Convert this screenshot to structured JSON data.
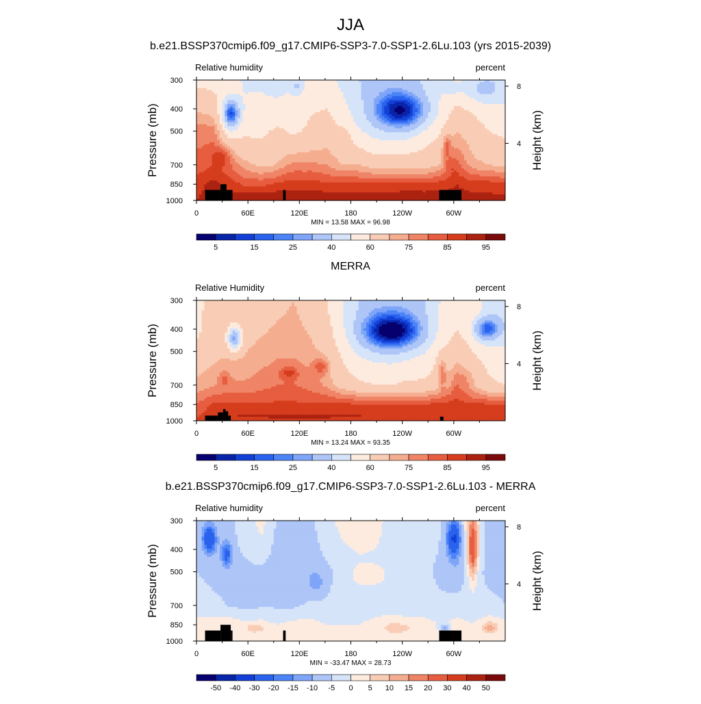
{
  "figure": {
    "title": "JJA"
  },
  "palettes": {
    "field": [
      "#07006f",
      "#0824a8",
      "#1240d6",
      "#2a62ee",
      "#4c84f7",
      "#7ea5f8",
      "#aec5f7",
      "#d6e4fa",
      "#fdebdf",
      "#f9cdb5",
      "#f5ad90",
      "#ef8466",
      "#e75d3f",
      "#d53d1d",
      "#ac2210",
      "#7b0a0a"
    ],
    "diff": [
      "#07006f",
      "#0824a8",
      "#1240d6",
      "#2a62ee",
      "#4c84f7",
      "#7ea5f8",
      "#aec5f7",
      "#d6e4fa",
      "#fdebdf",
      "#f9cdb5",
      "#f5ad90",
      "#ef8466",
      "#e75d3f",
      "#d53d1d",
      "#ac2210",
      "#7b0a0a"
    ],
    "terrain": "#000000"
  },
  "colorbars": {
    "field": {
      "labels": [
        "5",
        "15",
        "25",
        "40",
        "60",
        "75",
        "85",
        "95"
      ]
    },
    "diff": {
      "labels": [
        "-50",
        "-40",
        "-30",
        "-20",
        "-15",
        "-10",
        "-5",
        "0",
        "5",
        "10",
        "15",
        "20",
        "30",
        "40",
        "50"
      ]
    }
  },
  "axes": {
    "x_ticks": [
      "0",
      "60E",
      "120E",
      "180",
      "120W",
      "60W"
    ],
    "y_ticks": [
      "300",
      "400",
      "500",
      "700",
      "850",
      "1000"
    ],
    "y2_ticks": [
      "8",
      "4"
    ],
    "y_label": "Pressure (mb)",
    "y2_label": "Height (km)"
  },
  "chart_data": [
    {
      "type": "heatmap",
      "title": "b.e21.BSSP370cmip6.f09_g17.CMIP6-SSP3-7.0-SSP1-2.6Lu.103 (yrs 2015-2039)",
      "left_label": "Relative humidity",
      "right_label": "percent",
      "xlabel": "",
      "ylabel": "Pressure (mb)",
      "y2label": "Height (km)",
      "xlim": [
        0,
        360
      ],
      "ylim": [
        1000,
        300
      ],
      "y_log": true,
      "stats_text": "MIN =  13.58  MAX =  96.98",
      "min": 13.58,
      "max": 96.98,
      "levels": [
        5,
        10,
        15,
        20,
        25,
        30,
        40,
        50,
        60,
        70,
        75,
        80,
        85,
        90,
        95
      ],
      "palette": "field",
      "colorbar": "field",
      "base": [
        [
          60,
          56,
          56,
          48,
          48,
          45,
          50,
          56,
          54,
          47,
          40,
          35,
          35,
          38,
          42,
          50,
          55,
          51,
          47,
          45
        ],
        [
          78,
          78,
          58,
          58,
          58,
          62,
          58,
          62,
          66,
          60,
          52,
          48,
          48,
          50,
          55,
          60,
          70,
          66,
          60,
          58
        ],
        [
          82,
          84,
          80,
          72,
          68,
          70,
          72,
          76,
          75,
          70,
          70,
          66,
          66,
          66,
          66,
          70,
          82,
          72,
          70,
          68
        ],
        [
          88,
          92,
          88,
          84,
          84,
          86,
          86,
          88,
          86,
          86,
          86,
          86,
          86,
          86,
          86,
          88,
          90,
          88,
          88,
          86
        ],
        [
          90,
          92,
          92,
          92,
          92,
          92,
          92,
          92,
          92,
          92,
          92,
          92,
          92,
          92,
          92,
          92,
          92,
          92,
          92,
          92
        ]
      ],
      "features": [
        {
          "lon": 40,
          "p": 420,
          "dlon": 10,
          "dp": 0.14,
          "amp": -42
        },
        {
          "lon": 118,
          "p": 320,
          "dlon": 7,
          "dp": 0.08,
          "amp": -14
        },
        {
          "lon": 238,
          "p": 410,
          "dlon": 30,
          "dp": 0.18,
          "amp": -40
        },
        {
          "lon": 300,
          "p": 330,
          "dlon": 12,
          "dp": 0.1,
          "amp": -8
        },
        {
          "lon": 334,
          "p": 330,
          "dlon": 20,
          "dp": 0.12,
          "amp": -14
        },
        {
          "lon": 30,
          "p": 640,
          "dlon": 10,
          "dp": 0.1,
          "amp": 10
        },
        {
          "lon": 172,
          "p": 540,
          "dlon": 8,
          "dp": 0.1,
          "amp": 6
        },
        {
          "lon": 112,
          "p": 700,
          "dlon": 14,
          "dp": 0.2,
          "amp": 4
        },
        {
          "lon": 292,
          "p": 580,
          "dlon": 5,
          "dp": 0.12,
          "amp": 14
        },
        {
          "lon": 296,
          "p": 700,
          "dlon": 6,
          "dp": 0.08,
          "amp": 6
        },
        {
          "lon": 110,
          "p": 940,
          "dlon": 60,
          "dp": 0.03,
          "amp": 4
        },
        {
          "lon": 250,
          "p": 940,
          "dlon": 40,
          "dp": 0.03,
          "amp": 4
        }
      ],
      "terrain": [
        {
          "lon": [
            10,
            28
          ],
          "p": 900
        },
        {
          "lon": [
            28,
            35
          ],
          "p": 850
        },
        {
          "lon": [
            35,
            42
          ],
          "p": 900
        },
        {
          "lon": [
            101,
            104
          ],
          "p": 900
        },
        {
          "lon": [
            283,
            309
          ],
          "p": 900
        }
      ]
    },
    {
      "type": "heatmap",
      "title": "MERRA",
      "left_label": "Relative Humidity",
      "right_label": "percent",
      "xlabel": "",
      "ylabel": "Pressure (mb)",
      "y2label": "Height (km)",
      "xlim": [
        0,
        360
      ],
      "ylim": [
        1000,
        300
      ],
      "y_log": true,
      "stats_text": "MIN =  13.24  MAX =  93.35",
      "min": 13.24,
      "max": 93.35,
      "levels": [
        5,
        10,
        15,
        20,
        25,
        30,
        40,
        50,
        60,
        70,
        75,
        80,
        85,
        90,
        95
      ],
      "palette": "field",
      "colorbar": "field",
      "base": [
        [
          56,
          64,
          64,
          64,
          66,
          68,
          70,
          66,
          60,
          50,
          40,
          35,
          35,
          35,
          40,
          50,
          55,
          58,
          45,
          40
        ],
        [
          64,
          68,
          70,
          70,
          72,
          74,
          74,
          72,
          68,
          58,
          50,
          48,
          48,
          50,
          52,
          60,
          66,
          60,
          56,
          52
        ],
        [
          72,
          74,
          76,
          76,
          78,
          80,
          80,
          78,
          74,
          66,
          62,
          60,
          60,
          62,
          62,
          66,
          80,
          70,
          62,
          60
        ],
        [
          80,
          86,
          86,
          86,
          86,
          86,
          86,
          86,
          86,
          86,
          86,
          86,
          86,
          86,
          86,
          86,
          88,
          86,
          86,
          86
        ],
        [
          86,
          90,
          90,
          90,
          90,
          90,
          90,
          90,
          90,
          90,
          90,
          90,
          90,
          90,
          90,
          90,
          90,
          90,
          90,
          90
        ]
      ],
      "features": [
        {
          "lon": 44,
          "p": 440,
          "dlon": 8,
          "dp": 0.12,
          "amp": -40
        },
        {
          "lon": 228,
          "p": 410,
          "dlon": 34,
          "dp": 0.18,
          "amp": -45
        },
        {
          "lon": 338,
          "p": 400,
          "dlon": 16,
          "dp": 0.12,
          "amp": -35
        },
        {
          "lon": 108,
          "p": 620,
          "dlon": 10,
          "dp": 0.06,
          "amp": 10
        },
        {
          "lon": 145,
          "p": 580,
          "dlon": 8,
          "dp": 0.08,
          "amp": 12
        },
        {
          "lon": 32,
          "p": 660,
          "dlon": 6,
          "dp": 0.08,
          "amp": 8
        },
        {
          "lon": 286,
          "p": 620,
          "dlon": 5,
          "dp": 0.15,
          "amp": 14
        },
        {
          "lon": 315,
          "p": 650,
          "dlon": 10,
          "dp": 0.1,
          "amp": 4
        },
        {
          "lon": 120,
          "p": 950,
          "dlon": 80,
          "dp": 0.02,
          "amp": 3
        }
      ],
      "terrain": [
        {
          "lon": [
            10,
            25
          ],
          "p": 950
        },
        {
          "lon": [
            25,
            31
          ],
          "p": 920
        },
        {
          "lon": [
            31,
            34
          ],
          "p": 890
        },
        {
          "lon": [
            34,
            37
          ],
          "p": 910
        },
        {
          "lon": [
            37,
            40
          ],
          "p": 950
        },
        {
          "lon": [
            284,
            288
          ],
          "p": 960
        }
      ]
    },
    {
      "type": "heatmap",
      "title": "b.e21.BSSP370cmip6.f09_g17.CMIP6-SSP3-7.0-SSP1-2.6Lu.103 - MERRA",
      "left_label": "Relative humidity",
      "right_label": "percent",
      "xlabel": "",
      "ylabel": "Pressure (mb)",
      "y2label": "Height (km)",
      "xlim": [
        0,
        360
      ],
      "ylim": [
        1000,
        300
      ],
      "y_log": true,
      "stats_text": "MIN = -33.47  MAX =  28.73",
      "min": -33.47,
      "max": 28.73,
      "levels": [
        -50,
        -40,
        -30,
        -20,
        -15,
        -10,
        -5,
        0,
        5,
        10,
        15,
        20,
        30,
        40,
        50
      ],
      "palette": "diff",
      "colorbar": "diff",
      "base": [
        [
          -5,
          -5,
          -6,
          -3,
          2,
          -6,
          -8,
          -6,
          -2,
          2,
          3,
          2,
          -2,
          -4,
          -4,
          -4,
          -8,
          6,
          -8,
          -10
        ],
        [
          -5,
          -6,
          -6,
          -6,
          -6,
          -8,
          -8,
          -8,
          -6,
          -4,
          -2,
          -2,
          -2,
          -4,
          -4,
          -6,
          -8,
          -4,
          -6,
          -6
        ],
        [
          -3,
          -4,
          -5,
          -5,
          -5,
          -6,
          -6,
          -4,
          -4,
          -3,
          -3,
          -3,
          -3,
          -3,
          -3,
          -4,
          -3,
          -3,
          -4,
          -5
        ],
        [
          2,
          3,
          4,
          1,
          2,
          0,
          2,
          2,
          0,
          0,
          0,
          2,
          4,
          2,
          2,
          0,
          2,
          0,
          4,
          2
        ],
        [
          4,
          4,
          2,
          2,
          2,
          2,
          2,
          3,
          2,
          2,
          2,
          2,
          2,
          2,
          2,
          2,
          4,
          2,
          2,
          2
        ]
      ],
      "features": [
        {
          "lon": 15,
          "p": 360,
          "dlon": 8,
          "dp": 0.14,
          "amp": -24
        },
        {
          "lon": 35,
          "p": 420,
          "dlon": 6,
          "dp": 0.12,
          "amp": -18
        },
        {
          "lon": 300,
          "p": 360,
          "dlon": 8,
          "dp": 0.18,
          "amp": -24
        },
        {
          "lon": 322,
          "p": 400,
          "dlon": 6,
          "dp": 0.3,
          "amp": 26
        },
        {
          "lon": 68,
          "p": 880,
          "dlon": 10,
          "dp": 0.04,
          "amp": 8
        },
        {
          "lon": 235,
          "p": 880,
          "dlon": 14,
          "dp": 0.04,
          "amp": 7
        },
        {
          "lon": 342,
          "p": 875,
          "dlon": 8,
          "dp": 0.05,
          "amp": 10
        },
        {
          "lon": 290,
          "p": 880,
          "dlon": 6,
          "dp": 0.04,
          "amp": -12
        },
        {
          "lon": 200,
          "p": 520,
          "dlon": 20,
          "dp": 0.1,
          "amp": 6
        },
        {
          "lon": 140,
          "p": 560,
          "dlon": 10,
          "dp": 0.12,
          "amp": -6
        },
        {
          "lon": 60,
          "p": 620,
          "dlon": 16,
          "dp": 0.15,
          "amp": -4
        }
      ],
      "terrain": [
        {
          "lon": [
            10,
            28
          ],
          "p": 900
        },
        {
          "lon": [
            28,
            40
          ],
          "p": 850
        },
        {
          "lon": [
            40,
            42
          ],
          "p": 900
        },
        {
          "lon": [
            101,
            104
          ],
          "p": 900
        },
        {
          "lon": [
            283,
            309
          ],
          "p": 900
        }
      ]
    }
  ]
}
